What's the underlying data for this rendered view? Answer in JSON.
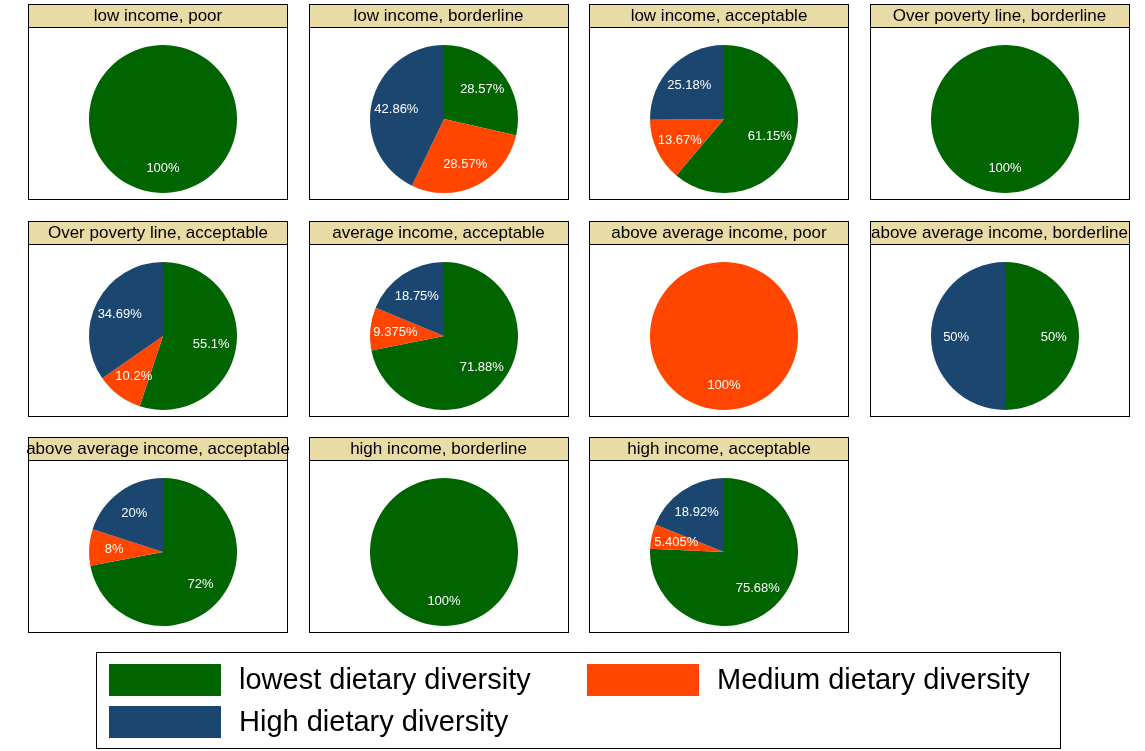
{
  "chart_data": [
    {
      "type": "pie",
      "title": "low income, poor",
      "categories": [
        null,
        null,
        null
      ],
      "values": [
        100,
        0,
        0
      ],
      "value_labels": [
        "100%",
        null,
        null
      ],
      "colors": [
        "#006400",
        "#ff4500",
        "#1b4670"
      ]
    },
    {
      "type": "pie",
      "title": "low income, borderline",
      "categories": [
        null,
        null,
        null
      ],
      "values": [
        28.57,
        28.57,
        42.86
      ],
      "value_labels": [
        "28.57%",
        "28.57%",
        "42.86%"
      ],
      "colors": [
        "#006400",
        "#ff4500",
        "#1b4670"
      ]
    },
    {
      "type": "pie",
      "title": "low income, acceptable",
      "categories": [
        null,
        null,
        null
      ],
      "values": [
        61.15,
        13.67,
        25.18
      ],
      "value_labels": [
        "61.15%",
        "13.67%",
        "25.18%"
      ],
      "colors": [
        "#006400",
        "#ff4500",
        "#1b4670"
      ]
    },
    {
      "type": "pie",
      "title": "Over poverty line, borderline",
      "categories": [
        null,
        null,
        null
      ],
      "values": [
        100,
        0,
        0
      ],
      "value_labels": [
        "100%",
        null,
        null
      ],
      "colors": [
        "#006400",
        "#ff4500",
        "#1b4670"
      ]
    },
    {
      "type": "pie",
      "title": "Over poverty line, acceptable",
      "categories": [
        null,
        null,
        null
      ],
      "values": [
        55.1,
        10.2,
        34.69
      ],
      "value_labels": [
        "55.1%",
        "10.2%",
        "34.69%"
      ],
      "colors": [
        "#006400",
        "#ff4500",
        "#1b4670"
      ]
    },
    {
      "type": "pie",
      "title": "average income, acceptable",
      "categories": [
        null,
        null,
        null
      ],
      "values": [
        71.88,
        9.375,
        18.75
      ],
      "value_labels": [
        "71.88%",
        "9.375%",
        "18.75%"
      ],
      "colors": [
        "#006400",
        "#ff4500",
        "#1b4670"
      ]
    },
    {
      "type": "pie",
      "title": "above average income, poor",
      "categories": [
        null,
        null,
        null
      ],
      "values": [
        0,
        100,
        0
      ],
      "value_labels": [
        null,
        "100%",
        null
      ],
      "colors": [
        "#006400",
        "#ff4500",
        "#1b4670"
      ]
    },
    {
      "type": "pie",
      "title": "above average income, borderline",
      "categories": [
        null,
        null,
        null
      ],
      "values": [
        50,
        0,
        50
      ],
      "value_labels": [
        "50%",
        null,
        "50%"
      ],
      "colors": [
        "#006400",
        "#ff4500",
        "#1b4670"
      ]
    },
    {
      "type": "pie",
      "title": "above average income, acceptable",
      "categories": [
        null,
        null,
        null
      ],
      "values": [
        72,
        8,
        20
      ],
      "value_labels": [
        "72%",
        "8%",
        "20%"
      ],
      "colors": [
        "#006400",
        "#ff4500",
        "#1b4670"
      ]
    },
    {
      "type": "pie",
      "title": "high income, borderline",
      "categories": [
        null,
        null,
        null
      ],
      "values": [
        100,
        0,
        0
      ],
      "value_labels": [
        "100%",
        null,
        null
      ],
      "colors": [
        "#006400",
        "#ff4500",
        "#1b4670"
      ]
    },
    {
      "type": "pie",
      "title": "high income, acceptable",
      "categories": [
        "lowest dietary diversity",
        "Medium dietary diversity",
        "High dietary diversity"
      ],
      "values": [
        75.68,
        5.405,
        18.92
      ],
      "value_labels": [
        "75.68%",
        "5.405%",
        "18.92%"
      ],
      "colors": [
        "#006400",
        "#ff4500",
        "#1b4670"
      ],
      "legend": "bottom"
    }
  ]
}
